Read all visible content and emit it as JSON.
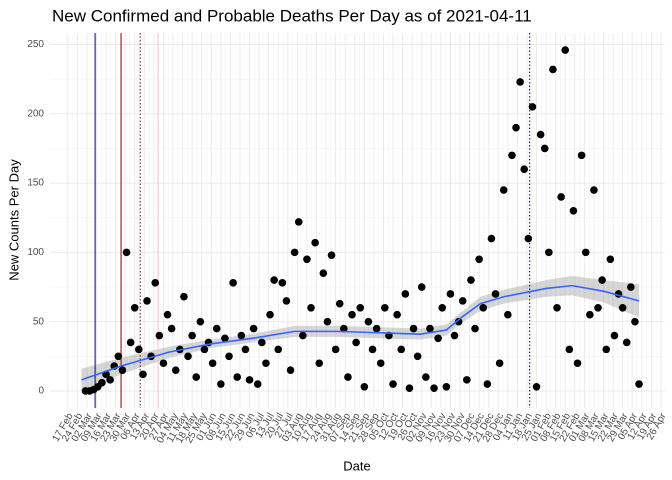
{
  "chart_data": {
    "type": "scatter",
    "title": "New Confirmed and Probable Deaths Per Day as of 2021-04-11",
    "x_label": "Date",
    "y_label": "New Counts Per Day",
    "color": "#000000",
    "grid": true,
    "xlim": [
      "2020-02-04",
      "2021-04-29"
    ],
    "ylim": [
      -12.3,
      258.3
    ],
    "yticks": [
      0,
      50,
      100,
      150,
      200,
      250
    ],
    "xticks": [
      {
        "value": "2020-02-17",
        "label": "17 Feb"
      },
      {
        "value": "2020-02-24",
        "label": "24 Feb"
      },
      {
        "value": "2020-03-02",
        "label": "02 Mar"
      },
      {
        "value": "2020-03-09",
        "label": "09 Mar"
      },
      {
        "value": "2020-03-16",
        "label": "16 Mar"
      },
      {
        "value": "2020-03-23",
        "label": "23 Mar"
      },
      {
        "value": "2020-03-30",
        "label": "30 Mar"
      },
      {
        "value": "2020-04-06",
        "label": "06 Apr"
      },
      {
        "value": "2020-04-13",
        "label": "13 Apr"
      },
      {
        "value": "2020-04-20",
        "label": "20 Apr"
      },
      {
        "value": "2020-04-27",
        "label": "27 Apr"
      },
      {
        "value": "2020-05-04",
        "label": "04 May"
      },
      {
        "value": "2020-05-11",
        "label": "11 May"
      },
      {
        "value": "2020-05-18",
        "label": "18 May"
      },
      {
        "value": "2020-05-25",
        "label": "25 May"
      },
      {
        "value": "2020-06-01",
        "label": "01 Jun"
      },
      {
        "value": "2020-06-08",
        "label": "08 Jun"
      },
      {
        "value": "2020-06-15",
        "label": "15 Jun"
      },
      {
        "value": "2020-06-22",
        "label": "22 Jun"
      },
      {
        "value": "2020-06-29",
        "label": "29 Jun"
      },
      {
        "value": "2020-07-06",
        "label": "06 Jul"
      },
      {
        "value": "2020-07-13",
        "label": "13 Jul"
      },
      {
        "value": "2020-07-20",
        "label": "20 Jul"
      },
      {
        "value": "2020-07-27",
        "label": "27 Jul"
      },
      {
        "value": "2020-08-03",
        "label": "03 Aug"
      },
      {
        "value": "2020-08-10",
        "label": "10 Aug"
      },
      {
        "value": "2020-08-17",
        "label": "17 Aug"
      },
      {
        "value": "2020-08-24",
        "label": "24 Aug"
      },
      {
        "value": "2020-08-31",
        "label": "31 Aug"
      },
      {
        "value": "2020-09-07",
        "label": "07 Sep"
      },
      {
        "value": "2020-09-14",
        "label": "14 Sep"
      },
      {
        "value": "2020-09-21",
        "label": "21 Sep"
      },
      {
        "value": "2020-09-28",
        "label": "28 Sep"
      },
      {
        "value": "2020-10-05",
        "label": "05 Oct"
      },
      {
        "value": "2020-10-12",
        "label": "12 Oct"
      },
      {
        "value": "2020-10-19",
        "label": "19 Oct"
      },
      {
        "value": "2020-10-26",
        "label": "26 Oct"
      },
      {
        "value": "2020-11-02",
        "label": "02 Nov"
      },
      {
        "value": "2020-11-09",
        "label": "09 Nov"
      },
      {
        "value": "2020-11-16",
        "label": "16 Nov"
      },
      {
        "value": "2020-11-23",
        "label": "23 Nov"
      },
      {
        "value": "2020-11-30",
        "label": "30 Nov"
      },
      {
        "value": "2020-12-07",
        "label": "07 Dec"
      },
      {
        "value": "2020-12-14",
        "label": "14 Dec"
      },
      {
        "value": "2020-12-21",
        "label": "21 Dec"
      },
      {
        "value": "2020-12-28",
        "label": "28 Dec"
      },
      {
        "value": "2021-01-04",
        "label": "04 Jan"
      },
      {
        "value": "2021-01-11",
        "label": "11 Jan"
      },
      {
        "value": "2021-01-18",
        "label": "18 Jan"
      },
      {
        "value": "2021-01-25",
        "label": "25 Jan"
      },
      {
        "value": "2021-02-01",
        "label": "01 Feb"
      },
      {
        "value": "2021-02-08",
        "label": "08 Feb"
      },
      {
        "value": "2021-02-15",
        "label": "15 Feb"
      },
      {
        "value": "2021-02-22",
        "label": "22 Feb"
      },
      {
        "value": "2021-03-01",
        "label": "01 Mar"
      },
      {
        "value": "2021-03-08",
        "label": "08 Mar"
      },
      {
        "value": "2021-03-15",
        "label": "15 Mar"
      },
      {
        "value": "2021-03-22",
        "label": "22 Mar"
      },
      {
        "value": "2021-03-29",
        "label": "29 Mar"
      },
      {
        "value": "2021-04-05",
        "label": "05 Apr"
      },
      {
        "value": "2021-04-12",
        "label": "12 Apr"
      },
      {
        "value": "2021-04-19",
        "label": "19 Apr"
      },
      {
        "value": "2021-04-26",
        "label": "26 Apr"
      }
    ],
    "x": [
      "2020-03-01",
      "2020-03-04",
      "2020-03-07",
      "2020-03-10",
      "2020-03-13",
      "2020-03-16",
      "2020-03-19",
      "2020-03-22",
      "2020-03-25",
      "2020-03-28",
      "2020-03-31",
      "2020-04-03",
      "2020-04-06",
      "2020-04-09",
      "2020-04-12",
      "2020-04-15",
      "2020-04-18",
      "2020-04-21",
      "2020-04-24",
      "2020-04-27",
      "2020-04-30",
      "2020-05-03",
      "2020-05-06",
      "2020-05-09",
      "2020-05-12",
      "2020-05-15",
      "2020-05-18",
      "2020-05-21",
      "2020-05-24",
      "2020-05-27",
      "2020-05-30",
      "2020-06-02",
      "2020-06-05",
      "2020-06-08",
      "2020-06-11",
      "2020-06-14",
      "2020-06-17",
      "2020-06-20",
      "2020-06-23",
      "2020-06-26",
      "2020-06-29",
      "2020-07-02",
      "2020-07-05",
      "2020-07-08",
      "2020-07-11",
      "2020-07-14",
      "2020-07-17",
      "2020-07-20",
      "2020-07-23",
      "2020-07-26",
      "2020-07-29",
      "2020-08-01",
      "2020-08-04",
      "2020-08-07",
      "2020-08-10",
      "2020-08-13",
      "2020-08-16",
      "2020-08-19",
      "2020-08-22",
      "2020-08-25",
      "2020-08-28",
      "2020-08-31",
      "2020-09-03",
      "2020-09-06",
      "2020-09-09",
      "2020-09-12",
      "2020-09-15",
      "2020-09-18",
      "2020-09-21",
      "2020-09-24",
      "2020-09-27",
      "2020-09-30",
      "2020-10-03",
      "2020-10-06",
      "2020-10-09",
      "2020-10-12",
      "2020-10-15",
      "2020-10-18",
      "2020-10-21",
      "2020-10-24",
      "2020-10-27",
      "2020-10-30",
      "2020-11-02",
      "2020-11-05",
      "2020-11-08",
      "2020-11-11",
      "2020-11-14",
      "2020-11-17",
      "2020-11-20",
      "2020-11-23",
      "2020-11-26",
      "2020-11-29",
      "2020-12-02",
      "2020-12-05",
      "2020-12-08",
      "2020-12-11",
      "2020-12-14",
      "2020-12-17",
      "2020-12-20",
      "2020-12-23",
      "2020-12-26",
      "2020-12-29",
      "2021-01-01",
      "2021-01-04",
      "2021-01-07",
      "2021-01-10",
      "2021-01-13",
      "2021-01-16",
      "2021-01-19",
      "2021-01-22",
      "2021-01-25",
      "2021-01-28",
      "2021-01-31",
      "2021-02-03",
      "2021-02-06",
      "2021-02-09",
      "2021-02-12",
      "2021-02-15",
      "2021-02-18",
      "2021-02-21",
      "2021-02-24",
      "2021-02-27",
      "2021-03-02",
      "2021-03-05",
      "2021-03-08",
      "2021-03-11",
      "2021-03-14",
      "2021-03-17",
      "2021-03-20",
      "2021-03-23",
      "2021-03-26",
      "2021-03-29",
      "2021-04-01",
      "2021-04-04",
      "2021-04-07",
      "2021-04-10"
    ],
    "values": [
      0,
      0,
      1,
      3,
      6,
      12,
      8,
      18,
      25,
      15,
      100,
      35,
      60,
      30,
      12,
      65,
      25,
      78,
      40,
      20,
      55,
      45,
      15,
      30,
      68,
      25,
      40,
      10,
      50,
      30,
      35,
      20,
      45,
      5,
      38,
      25,
      78,
      10,
      40,
      30,
      8,
      45,
      5,
      35,
      20,
      55,
      80,
      30,
      78,
      65,
      15,
      100,
      122,
      40,
      95,
      60,
      107,
      20,
      85,
      50,
      98,
      30,
      63,
      45,
      10,
      55,
      35,
      60,
      3,
      50,
      30,
      45,
      20,
      60,
      40,
      5,
      55,
      30,
      70,
      2,
      45,
      25,
      75,
      10,
      45,
      2,
      38,
      60,
      3,
      70,
      40,
      50,
      65,
      8,
      80,
      45,
      95,
      60,
      5,
      110,
      70,
      20,
      145,
      55,
      170,
      190,
      223,
      160,
      110,
      205,
      3,
      185,
      175,
      100,
      232,
      60,
      140,
      246,
      30,
      130,
      20,
      170,
      100,
      55,
      145,
      60,
      80,
      30,
      95,
      40,
      70,
      60,
      35,
      75,
      50,
      5
    ],
    "smooth": {
      "color": "#3366ff",
      "band_color": "#999999",
      "x": [
        "2020-02-27",
        "2020-03-27",
        "2020-05-01",
        "2020-06-01",
        "2020-07-01",
        "2020-08-01",
        "2020-09-01",
        "2020-10-01",
        "2020-11-01",
        "2020-11-20",
        "2020-12-01",
        "2020-12-15",
        "2021-01-01",
        "2021-02-01",
        "2021-02-20",
        "2021-03-15",
        "2021-04-10"
      ],
      "values": [
        8,
        18,
        28,
        34,
        38,
        43,
        43,
        42,
        41,
        44,
        53,
        63,
        68,
        74,
        76,
        72,
        65
      ],
      "lower": [
        0,
        12,
        24,
        31,
        35,
        39,
        39,
        38,
        37,
        40,
        49,
        58,
        63,
        68,
        69,
        64,
        53
      ],
      "upper": [
        16,
        24,
        32,
        37,
        41,
        47,
        47,
        46,
        45,
        48,
        57,
        68,
        73,
        80,
        83,
        80,
        77
      ]
    },
    "vlines": [
      {
        "x": "2020-03-08",
        "color": "#000080",
        "dash": false
      },
      {
        "x": "2020-03-27",
        "color": "#8b0000",
        "dash": false
      },
      {
        "x": "2020-04-10",
        "color": "#8b0000",
        "dash": true
      },
      {
        "x": "2020-04-23",
        "color": "#ffc0cb",
        "dash": false
      },
      {
        "x": "2021-01-20",
        "color": "#000080",
        "dash": true
      }
    ]
  }
}
